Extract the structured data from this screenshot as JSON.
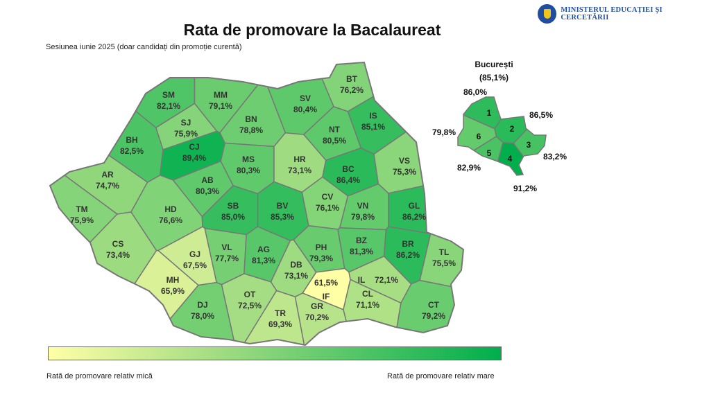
{
  "header": {
    "title": "Rata de promovare la Bacalaureat",
    "subtitle": "Sesiunea iunie 2025 (doar candidați din promoție curentă)",
    "ministry": "MINISTERUL EDUCAȚIEI ȘI CERCETĂRII"
  },
  "color_scale": {
    "low": "#FFFFA6",
    "mid": "#A8DE84",
    "high": "#00AE4C"
  },
  "counties": [
    {
      "code": "SM",
      "rate": "82,1%"
    },
    {
      "code": "MM",
      "rate": "79,1%"
    },
    {
      "code": "BT",
      "rate": "76,2%"
    },
    {
      "code": "SV",
      "rate": "80,4%"
    },
    {
      "code": "BN",
      "rate": "78,8%"
    },
    {
      "code": "SJ",
      "rate": "75,9%"
    },
    {
      "code": "BH",
      "rate": "82,5%"
    },
    {
      "code": "CJ",
      "rate": "89,4%"
    },
    {
      "code": "IS",
      "rate": "85,1%"
    },
    {
      "code": "NT",
      "rate": "80,5%"
    },
    {
      "code": "MS",
      "rate": "80,3%"
    },
    {
      "code": "HR",
      "rate": "73,1%"
    },
    {
      "code": "BC",
      "rate": "86,4%"
    },
    {
      "code": "VS",
      "rate": "75,3%"
    },
    {
      "code": "AR",
      "rate": "74,7%"
    },
    {
      "code": "AB",
      "rate": "80,3%"
    },
    {
      "code": "TM",
      "rate": "75,9%"
    },
    {
      "code": "HD",
      "rate": "76,6%"
    },
    {
      "code": "SB",
      "rate": "85,0%"
    },
    {
      "code": "BV",
      "rate": "85,3%"
    },
    {
      "code": "CV",
      "rate": "76,1%"
    },
    {
      "code": "VN",
      "rate": "79,8%"
    },
    {
      "code": "GL",
      "rate": "86,2%"
    },
    {
      "code": "CS",
      "rate": "73,4%"
    },
    {
      "code": "GJ",
      "rate": "67,5%"
    },
    {
      "code": "VL",
      "rate": "77,7%"
    },
    {
      "code": "AG",
      "rate": "81,3%"
    },
    {
      "code": "PH",
      "rate": "79,3%"
    },
    {
      "code": "BZ",
      "rate": "81,3%"
    },
    {
      "code": "BR",
      "rate": "86,2%"
    },
    {
      "code": "TL",
      "rate": "75,5%"
    },
    {
      "code": "MH",
      "rate": "65,9%"
    },
    {
      "code": "DB",
      "rate": "73,1%"
    },
    {
      "code": "IF",
      "rate": "61,5%"
    },
    {
      "code": "IL",
      "rate": "72,1%"
    },
    {
      "code": "OT",
      "rate": "72,5%"
    },
    {
      "code": "CL",
      "rate": "71,1%"
    },
    {
      "code": "CT",
      "rate": "79,2%"
    },
    {
      "code": "DJ",
      "rate": "78,0%"
    },
    {
      "code": "TR",
      "rate": "69,3%"
    },
    {
      "code": "GR",
      "rate": "70,2%"
    }
  ],
  "bucharest": {
    "title": "București",
    "total": "(85,1%)",
    "sectors": [
      {
        "num": "1",
        "rate": "86,0%"
      },
      {
        "num": "2",
        "rate": "86,5%"
      },
      {
        "num": "3",
        "rate": "83,2%"
      },
      {
        "num": "4",
        "rate": "91,2%"
      },
      {
        "num": "5",
        "rate": "82,9%"
      },
      {
        "num": "6",
        "rate": "79,8%"
      }
    ]
  },
  "legend": {
    "low_label": "Rată de promovare relativ mică",
    "high_label": "Rată de promovare relativ mare"
  }
}
